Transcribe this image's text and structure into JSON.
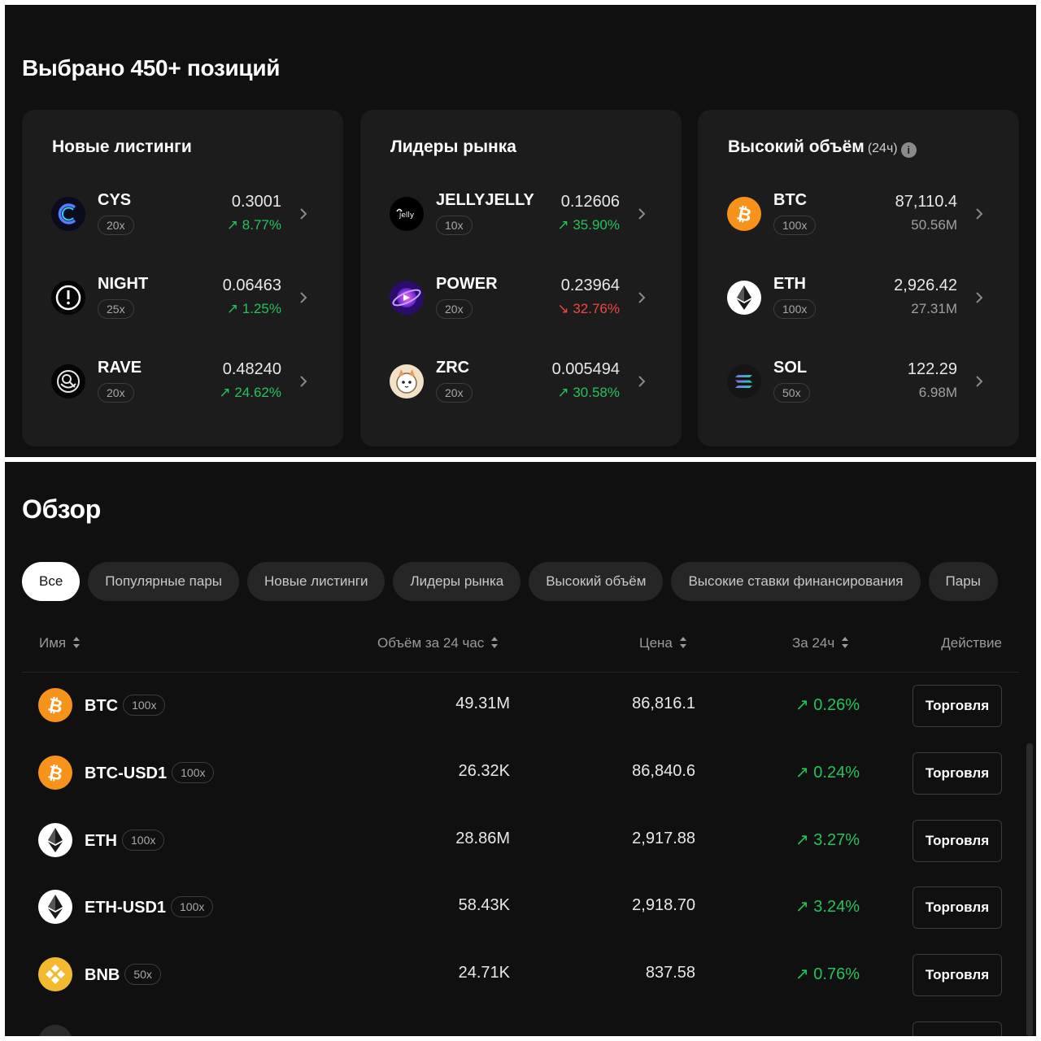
{
  "top": {
    "headline": "Выбрано 450+ позиций",
    "cards": [
      {
        "title": "Новые листинги",
        "suffix": "",
        "rows": [
          {
            "symbol": "CYS",
            "leverage": "20x",
            "value": "0.3001",
            "sub": "↗ 8.77%",
            "trend": "up",
            "icon": "cys-logo-icon"
          },
          {
            "symbol": "NIGHT",
            "leverage": "25x",
            "value": "0.06463",
            "sub": "↗ 1.25%",
            "trend": "up",
            "icon": "night-logo-icon"
          },
          {
            "symbol": "RAVE",
            "leverage": "20x",
            "value": "0.48240",
            "sub": "↗ 24.62%",
            "trend": "up",
            "icon": "rave-logo-icon"
          }
        ]
      },
      {
        "title": "Лидеры рынка",
        "suffix": "",
        "rows": [
          {
            "symbol": "JELLYJELLY",
            "leverage": "10x",
            "value": "0.12606",
            "sub": "↗ 35.90%",
            "trend": "up",
            "icon": "jelly-logo-icon"
          },
          {
            "symbol": "POWER",
            "leverage": "20x",
            "value": "0.23964",
            "sub": "↘ 32.76%",
            "trend": "down",
            "icon": "power-logo-icon"
          },
          {
            "symbol": "ZRC",
            "leverage": "20x",
            "value": "0.005494",
            "sub": "↗ 30.58%",
            "trend": "up",
            "icon": "zrc-logo-icon"
          }
        ]
      },
      {
        "title": "Высокий объём",
        "suffix": "(24ч)",
        "rows": [
          {
            "symbol": "BTC",
            "leverage": "100x",
            "value": "87,110.4",
            "sub": "50.56M",
            "trend": "neutral",
            "icon": "btc-logo-icon"
          },
          {
            "symbol": "ETH",
            "leverage": "100x",
            "value": "2,926.42",
            "sub": "27.31M",
            "trend": "neutral",
            "icon": "eth-logo-icon"
          },
          {
            "symbol": "SOL",
            "leverage": "50x",
            "value": "122.29",
            "sub": "6.98M",
            "trend": "neutral",
            "icon": "sol-logo-icon"
          }
        ]
      }
    ]
  },
  "overview": {
    "title": "Обзор",
    "chips": [
      "Все",
      "Популярные пары",
      "Новые листинги",
      "Лидеры рынка",
      "Высокий объём",
      "Высокие ставки финансирования",
      "Пары"
    ],
    "columns": {
      "name": "Имя",
      "volume": "Объём за 24 час",
      "price": "Цена",
      "change": "За 24ч",
      "action": "Действие"
    },
    "rows": [
      {
        "symbol": "BTC",
        "leverage": "100x",
        "volume": "49.31M",
        "price": "86,816.1",
        "change": "↗ 0.26%",
        "action": "Торговля",
        "icon": "btc-logo-icon"
      },
      {
        "symbol": "BTC-USD1",
        "leverage": "100x",
        "volume": "26.32K",
        "price": "86,840.6",
        "change": "↗ 0.24%",
        "action": "Торговля",
        "icon": "btc-logo-icon"
      },
      {
        "symbol": "ETH",
        "leverage": "100x",
        "volume": "28.86M",
        "price": "2,917.88",
        "change": "↗ 3.27%",
        "action": "Торговля",
        "icon": "eth-logo-icon"
      },
      {
        "symbol": "ETH-USD1",
        "leverage": "100x",
        "volume": "58.43K",
        "price": "2,918.70",
        "change": "↗ 3.24%",
        "action": "Торговля",
        "icon": "eth-logo-icon"
      },
      {
        "symbol": "BNB",
        "leverage": "50x",
        "volume": "24.71K",
        "price": "837.58",
        "change": "↗ 0.76%",
        "action": "Торговля",
        "icon": "bnb-logo-icon"
      }
    ]
  }
}
